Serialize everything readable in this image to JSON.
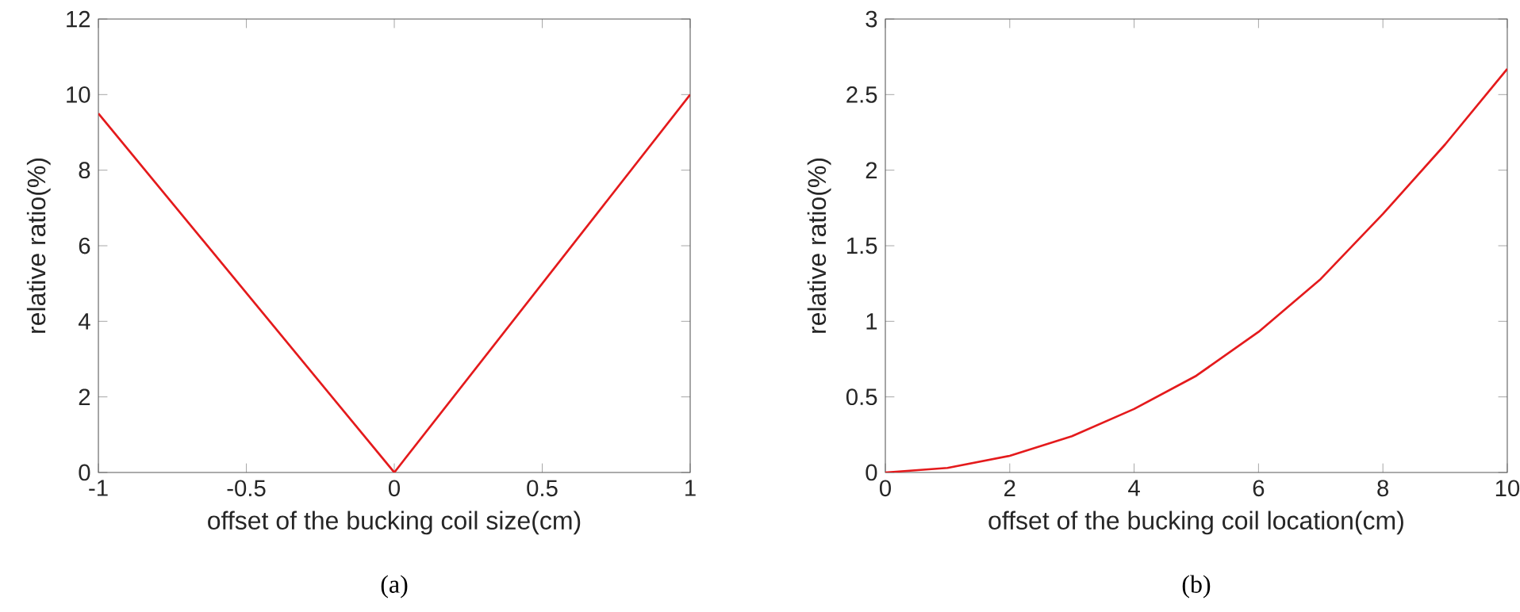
{
  "chart_data": [
    {
      "type": "line",
      "xlabel": "offset of the bucking coil size(cm)",
      "ylabel": "relative ratio(%)",
      "annotations": [
        "(a)"
      ],
      "x": [
        -1,
        0,
        1
      ],
      "series": [
        {
          "color": "#e41a1c",
          "values": [
            9.5,
            0,
            10
          ]
        }
      ],
      "xlim": [
        -1,
        1
      ],
      "ylim": [
        0,
        12
      ],
      "xticks": [
        -1,
        -0.5,
        0,
        0.5,
        1
      ],
      "yticks": [
        0,
        2,
        4,
        6,
        8,
        10,
        12
      ],
      "marker": "none",
      "line_style": "solid"
    },
    {
      "type": "line",
      "xlabel": "offset of the bucking coil location(cm)",
      "ylabel": "relative ratio(%)",
      "annotations": [
        "(b)"
      ],
      "x": [
        0,
        1,
        2,
        3,
        4,
        5,
        6,
        7,
        8,
        9,
        10
      ],
      "series": [
        {
          "color": "#e41a1c",
          "values": [
            0,
            0.03,
            0.11,
            0.24,
            0.42,
            0.64,
            0.93,
            1.28,
            1.71,
            2.17,
            2.67
          ]
        }
      ],
      "xlim": [
        0,
        10
      ],
      "ylim": [
        0,
        3
      ],
      "xticks": [
        0,
        2,
        4,
        6,
        8,
        10
      ],
      "yticks": [
        0,
        0.5,
        1,
        1.5,
        2,
        2.5,
        3
      ],
      "marker": "none",
      "line_style": "solid"
    }
  ]
}
